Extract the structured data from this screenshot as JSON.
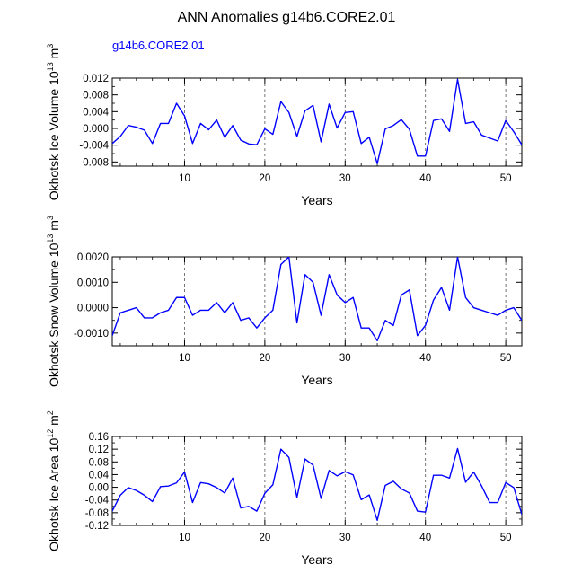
{
  "title": "ANN Anomalies g14b6.CORE2.01",
  "subtitle": "g14b6.CORE2.01",
  "colors": {
    "line": "#0000ff",
    "axis": "#000000",
    "grid": "#555555"
  },
  "chart_data": [
    {
      "type": "line",
      "ylabel": "Okhotsk Ice Volume",
      "units_base": "10",
      "units_exp": "13",
      "units_unit": "m",
      "units_unit_exp": "3",
      "xlabel": "Years",
      "xlim": [
        1,
        52
      ],
      "ylim": [
        -0.009,
        0.012
      ],
      "x_ticks": [
        10,
        20,
        30,
        40,
        50
      ],
      "x_tick_labels": [
        "10",
        "20",
        "30",
        "40",
        "50"
      ],
      "y_ticks": [
        0.012,
        0.008,
        0.004,
        0.0,
        -0.004,
        -0.008
      ],
      "y_tick_labels": [
        "0.012",
        "0.008",
        "0.004",
        "0.000",
        "-0.004",
        "-0.008"
      ],
      "series": [
        {
          "name": "g14b6.CORE2.01",
          "x": [
            1,
            2,
            3,
            4,
            5,
            6,
            7,
            8,
            9,
            10,
            11,
            12,
            13,
            14,
            15,
            16,
            17,
            18,
            19,
            20,
            21,
            22,
            23,
            24,
            25,
            26,
            27,
            28,
            29,
            30,
            31,
            32,
            33,
            34,
            35,
            36,
            37,
            38,
            39,
            40,
            41,
            42,
            43,
            44,
            45,
            46,
            47,
            48,
            49,
            50,
            51,
            52
          ],
          "values": [
            -0.0036,
            -0.0019,
            0.0007,
            0.0003,
            -0.0004,
            -0.0036,
            0.0012,
            0.0012,
            0.006,
            0.003,
            -0.0036,
            0.0012,
            -0.0003,
            0.002,
            -0.0021,
            0.0007,
            -0.0028,
            -0.0037,
            -0.0039,
            -0.0001,
            -0.0014,
            0.0064,
            0.0038,
            -0.0019,
            0.0042,
            0.0055,
            -0.0032,
            0.0058,
            0.0001,
            0.0038,
            0.004,
            -0.0036,
            -0.0021,
            -0.0084,
            -0.0001,
            0.0007,
            0.0021,
            -0.0002,
            -0.0066,
            -0.0066,
            0.0019,
            0.0023,
            -0.0007,
            0.0117,
            0.0012,
            0.0016,
            -0.0016,
            -0.0023,
            -0.003,
            0.0019,
            -0.0008,
            -0.0039
          ]
        }
      ]
    },
    {
      "type": "line",
      "ylabel": "Okhotsk Snow Volume",
      "units_base": "10",
      "units_exp": "13",
      "units_unit": "m",
      "units_unit_exp": "3",
      "xlabel": "Years",
      "xlim": [
        1,
        52
      ],
      "ylim": [
        -0.0015,
        0.002
      ],
      "x_ticks": [
        10,
        20,
        30,
        40,
        50
      ],
      "x_tick_labels": [
        "10",
        "20",
        "30",
        "40",
        "50"
      ],
      "y_ticks": [
        0.002,
        0.001,
        0.0,
        -0.001
      ],
      "y_tick_labels": [
        "0.0020",
        "0.0010",
        "0.0000",
        "-0.0010"
      ],
      "series": [
        {
          "name": "g14b6.CORE2.01",
          "x": [
            1,
            2,
            3,
            4,
            5,
            6,
            7,
            8,
            9,
            10,
            11,
            12,
            13,
            14,
            15,
            16,
            17,
            18,
            19,
            20,
            21,
            22,
            23,
            24,
            25,
            26,
            27,
            28,
            29,
            30,
            31,
            32,
            33,
            34,
            35,
            36,
            37,
            38,
            39,
            40,
            41,
            42,
            43,
            44,
            45,
            46,
            47,
            48,
            49,
            50,
            51,
            52
          ],
          "values": [
            -0.0011,
            -0.0002,
            -0.0001,
            0.0,
            -0.0004,
            -0.0004,
            -0.0002,
            -0.0001,
            0.0004,
            0.0004,
            -0.0003,
            -0.0001,
            -0.0001,
            0.0002,
            -0.0002,
            0.0002,
            -0.0005,
            -0.0004,
            -0.0008,
            -0.0004,
            -0.0001,
            0.0017,
            0.002,
            -0.0006,
            0.0013,
            0.001,
            -0.0003,
            0.0013,
            0.0005,
            0.0002,
            0.0004,
            -0.0008,
            -0.0008,
            -0.0013,
            -0.0005,
            -0.0007,
            0.0005,
            0.0007,
            -0.0011,
            -0.0007,
            0.0003,
            0.0008,
            -0.0001,
            0.002,
            0.0004,
            0.0,
            -0.0001,
            -0.0002,
            -0.0003,
            -0.0001,
            0.0,
            -0.0005
          ]
        }
      ]
    },
    {
      "type": "line",
      "ylabel": "Okhotsk Ice Area",
      "units_base": "10",
      "units_exp": "12",
      "units_unit": "m",
      "units_unit_exp": "2",
      "xlabel": "Years",
      "xlim": [
        1,
        52
      ],
      "ylim": [
        -0.12,
        0.16
      ],
      "x_ticks": [
        10,
        20,
        30,
        40,
        50
      ],
      "x_tick_labels": [
        "10",
        "20",
        "30",
        "40",
        "50"
      ],
      "y_ticks": [
        0.16,
        0.12,
        0.08,
        0.04,
        0.0,
        -0.04,
        -0.08,
        -0.12
      ],
      "y_tick_labels": [
        "0.16",
        "0.12",
        "0.08",
        "0.04",
        "0.00",
        "-0.04",
        "-0.08",
        "-0.12"
      ],
      "series": [
        {
          "name": "g14b6.CORE2.01",
          "x": [
            1,
            2,
            3,
            4,
            5,
            6,
            7,
            8,
            9,
            10,
            11,
            12,
            13,
            14,
            15,
            16,
            17,
            18,
            19,
            20,
            21,
            22,
            23,
            24,
            25,
            26,
            27,
            28,
            29,
            30,
            31,
            32,
            33,
            34,
            35,
            36,
            37,
            38,
            39,
            40,
            41,
            42,
            43,
            44,
            45,
            46,
            47,
            48,
            49,
            50,
            51,
            52
          ],
          "values": [
            -0.075,
            -0.025,
            -0.001,
            -0.01,
            -0.025,
            -0.045,
            0.002,
            0.004,
            0.014,
            0.048,
            -0.048,
            0.015,
            0.011,
            -0.001,
            -0.018,
            0.029,
            -0.065,
            -0.06,
            -0.075,
            -0.019,
            0.008,
            0.12,
            0.094,
            -0.032,
            0.089,
            0.07,
            -0.035,
            0.053,
            0.036,
            0.049,
            0.039,
            -0.039,
            -0.024,
            -0.104,
            0.006,
            0.019,
            -0.005,
            -0.018,
            -0.075,
            -0.078,
            0.038,
            0.038,
            0.029,
            0.122,
            0.016,
            0.048,
            0.004,
            -0.048,
            -0.048,
            0.015,
            -0.001,
            -0.085
          ]
        }
      ]
    }
  ]
}
